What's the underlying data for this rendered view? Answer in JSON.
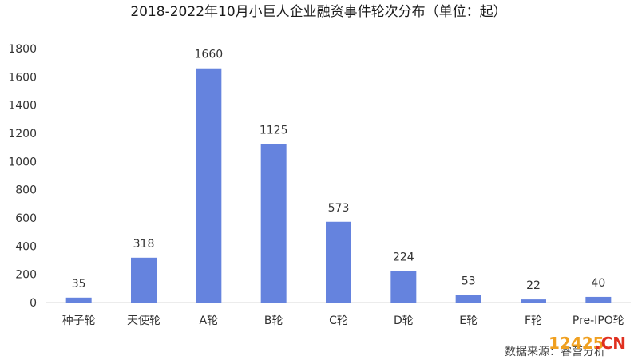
{
  "chart_data": {
    "type": "bar",
    "title": "2018-2022年10月小巨人企业融资事件轮次分布（单位：起）",
    "categories": [
      "种子轮",
      "天使轮",
      "A轮",
      "B轮",
      "C轮",
      "D轮",
      "E轮",
      "F轮",
      "Pre-IPO轮"
    ],
    "values": [
      35,
      318,
      1660,
      1125,
      573,
      224,
      53,
      22,
      40
    ],
    "ylim": [
      0,
      1800
    ],
    "yticks": [
      0,
      200,
      400,
      600,
      800,
      1000,
      1200,
      1400,
      1600,
      1800
    ],
    "grid": false,
    "bar_color": "#6583de",
    "xlabel": "",
    "ylabel": ""
  },
  "source_text": "数据来源：睿营分析",
  "watermark": {
    "part1": "12425",
    "part2": ".CN",
    "color1": "#f0a020",
    "color2": "#e03020"
  }
}
